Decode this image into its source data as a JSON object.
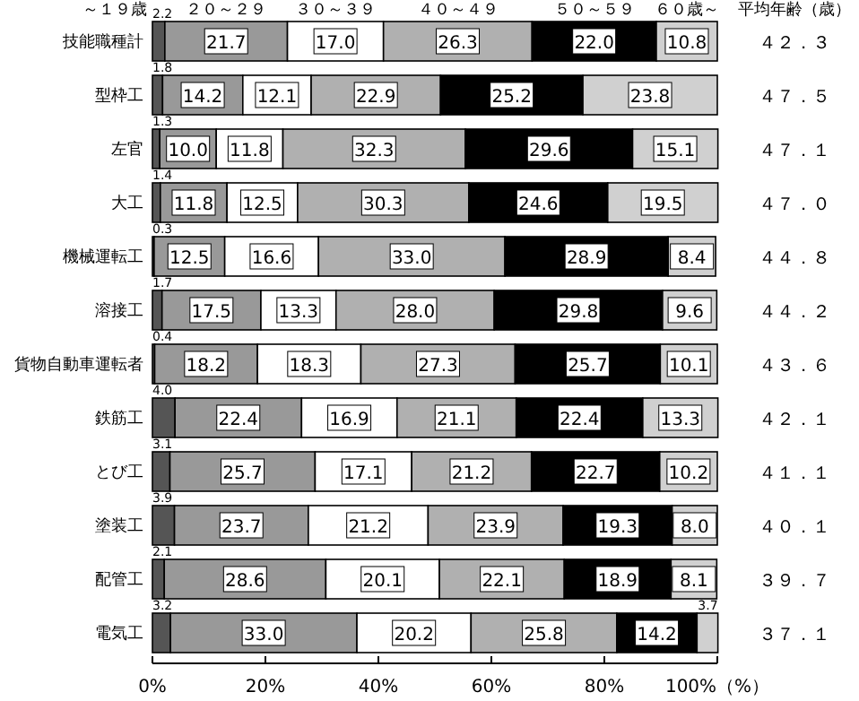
{
  "chart_data": {
    "type": "bar",
    "orientation": "horizontal",
    "stacked": true,
    "legend": "top",
    "grid": false,
    "categories": [
      "技能職種計",
      "型枠工",
      "左官",
      "大工",
      "機械運転工",
      "溶接工",
      "貨物自動車運転者",
      "鉄筋工",
      "とび工",
      "塗装工",
      "配管工",
      "電気工"
    ],
    "series": [
      {
        "name": "～１９歳",
        "color": "#555555",
        "values": [
          2.2,
          1.8,
          1.3,
          1.4,
          0.3,
          1.7,
          0.4,
          4.0,
          3.1,
          3.9,
          2.1,
          3.2
        ],
        "value_labels": [
          "2.2",
          "1.8",
          "1.3",
          "1.4",
          "0.3",
          "1.7",
          "0.4",
          "4.0",
          "3.1",
          "3.9",
          "2.1",
          "3.2"
        ]
      },
      {
        "name": "２０～２９",
        "color": "#999999",
        "values": [
          21.7,
          14.2,
          10.0,
          11.8,
          12.5,
          17.5,
          18.2,
          22.4,
          25.7,
          23.7,
          28.6,
          33.0
        ],
        "value_labels": [
          "21.7",
          "14.2",
          "10.0",
          "11.8",
          "12.5",
          "17.5",
          "18.2",
          "22.4",
          "25.7",
          "23.7",
          "28.6",
          "33.0"
        ]
      },
      {
        "name": "３０～３９",
        "color": "#ffffff",
        "values": [
          17.0,
          12.1,
          11.8,
          12.5,
          16.6,
          13.3,
          18.3,
          16.9,
          17.1,
          21.2,
          20.1,
          20.2
        ],
        "value_labels": [
          "17.0",
          "12.1",
          "11.8",
          "12.5",
          "16.6",
          "13.3",
          "18.3",
          "16.9",
          "17.1",
          "21.2",
          "20.1",
          "20.2"
        ]
      },
      {
        "name": "４０～４９",
        "color": "#b0b0b0",
        "values": [
          26.3,
          22.9,
          32.3,
          30.3,
          33.0,
          28.0,
          27.3,
          21.1,
          21.2,
          23.9,
          22.1,
          25.8
        ],
        "value_labels": [
          "26.3",
          "22.9",
          "32.3",
          "30.3",
          "33.0",
          "28.0",
          "27.3",
          "21.1",
          "21.2",
          "23.9",
          "22.1",
          "25.8"
        ]
      },
      {
        "name": "５０～５９",
        "color": "#000000",
        "values": [
          22.0,
          25.2,
          29.6,
          24.6,
          28.9,
          29.8,
          25.7,
          22.4,
          22.7,
          19.3,
          18.9,
          14.2
        ],
        "value_labels": [
          "22.0",
          "25.2",
          "29.6",
          "24.6",
          "28.9",
          "29.8",
          "25.7",
          "22.4",
          "22.7",
          "19.3",
          "18.9",
          "14.2"
        ]
      },
      {
        "name": "６０歳～",
        "color": "#d0d0d0",
        "values": [
          10.8,
          23.8,
          15.1,
          19.5,
          8.4,
          9.6,
          10.1,
          13.3,
          10.2,
          8.0,
          8.1,
          3.7
        ],
        "value_labels": [
          "10.8",
          "23.8",
          "15.1",
          "19.5",
          "8.4",
          "9.6",
          "10.1",
          "13.3",
          "10.2",
          "8.0",
          "8.1",
          "3.7"
        ]
      }
    ],
    "xlim": [
      0,
      100
    ],
    "xticks": [
      {
        "value": 0,
        "label": "0%"
      },
      {
        "value": 20,
        "label": "20%"
      },
      {
        "value": 40,
        "label": "40%"
      },
      {
        "value": 60,
        "label": "60%"
      },
      {
        "value": 80,
        "label": "80%"
      },
      {
        "value": 100,
        "label": "100%（%）"
      }
    ],
    "annotations": [
      "平均年齢（歳）",
      "４２．３",
      "４７．５",
      "４７．１",
      "４７．０",
      "４４．８",
      "４４．２",
      "４３．６",
      "４２．１",
      "４１．１",
      "４０．１",
      "３９．７",
      "３７．１"
    ]
  }
}
